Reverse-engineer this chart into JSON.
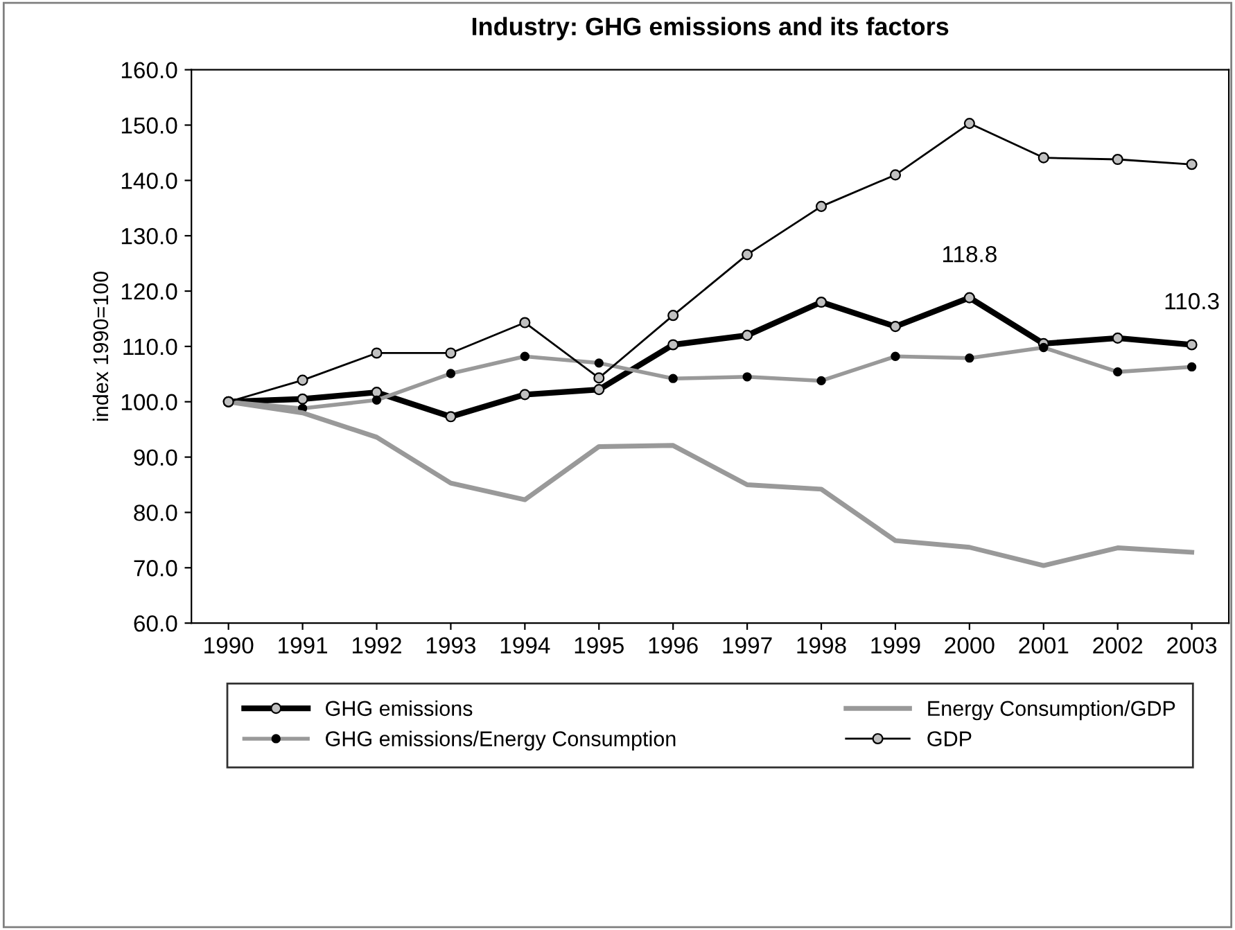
{
  "chart_data": {
    "type": "line",
    "title": "Industry: GHG emissions and its factors",
    "ylabel": "index 1990=100",
    "categories": [
      "1990",
      "1991",
      "1992",
      "1993",
      "1994",
      "1995",
      "1996",
      "1997",
      "1998",
      "1999",
      "2000",
      "2001",
      "2002",
      "2003"
    ],
    "series": [
      {
        "name": "GHG emissions",
        "color": "#000000",
        "marker": "circle",
        "values": [
          100.0,
          100.5,
          101.7,
          97.3,
          101.3,
          102.2,
          110.3,
          112.0,
          118.0,
          113.6,
          118.8,
          110.5,
          111.5,
          110.3
        ]
      },
      {
        "name": "GHG emissions/Energy Consumption",
        "color": "#999999",
        "marker": "circle",
        "values": [
          100.0,
          98.8,
          100.3,
          105.1,
          108.2,
          107.0,
          104.2,
          104.5,
          103.8,
          108.2,
          107.9,
          109.8,
          105.4,
          106.3
        ]
      },
      {
        "name": "Energy Consumption/GDP",
        "color": "#999999",
        "marker": "none",
        "values": [
          100.0,
          98.0,
          93.6,
          85.3,
          82.3,
          91.9,
          92.1,
          85.0,
          84.2,
          74.9,
          73.7,
          70.4,
          73.6,
          72.8
        ]
      },
      {
        "name": "GDP",
        "color": "#000000",
        "marker": "circle",
        "values": [
          100.0,
          103.9,
          108.8,
          108.8,
          114.3,
          104.3,
          115.6,
          126.6,
          135.3,
          141.0,
          150.3,
          144.1,
          143.8,
          142.9
        ]
      }
    ],
    "ylim": [
      60,
      160
    ],
    "yticks": [
      {
        "value": 60,
        "label": "60.0"
      },
      {
        "value": 70,
        "label": "70.0"
      },
      {
        "value": 80,
        "label": "80.0"
      },
      {
        "value": 90,
        "label": "90.0"
      },
      {
        "value": 100,
        "label": "100.0"
      },
      {
        "value": 110,
        "label": "110.0"
      },
      {
        "value": 120,
        "label": "120.0"
      },
      {
        "value": 130,
        "label": "130.0"
      },
      {
        "value": 140,
        "label": "140.0"
      },
      {
        "value": 150,
        "label": "150.0"
      },
      {
        "value": 160,
        "label": "160.0"
      }
    ],
    "annotations": [
      {
        "text": "118.8",
        "x": "2000",
        "y": 118.8
      },
      {
        "text": "110.3",
        "x": "2003",
        "y": 110.3
      }
    ],
    "grid": false,
    "legend": "bottom",
    "line_style": "solid"
  }
}
